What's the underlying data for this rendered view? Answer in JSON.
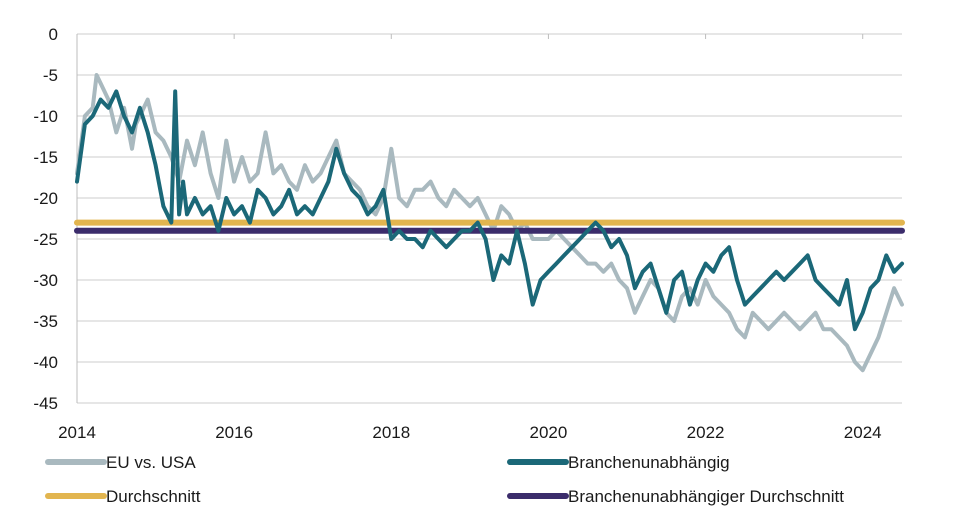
{
  "chart_data": {
    "type": "line",
    "title": "",
    "xlabel": "",
    "ylabel": "",
    "xlim": [
      2014,
      2024.5
    ],
    "ylim": [
      -45,
      0
    ],
    "x_ticks": [
      2014,
      2016,
      2018,
      2020,
      2022,
      2024
    ],
    "x_tick_labels": [
      "2014",
      "2016",
      "2018",
      "2020",
      "2022",
      "2024"
    ],
    "y_ticks": [
      0,
      -5,
      -10,
      -15,
      -20,
      -25,
      -30,
      -35,
      -40,
      -45
    ],
    "y_tick_labels": [
      "0",
      "-5",
      "-10",
      "-15",
      "-20",
      "-25",
      "-30",
      "-35",
      "-40",
      "-45"
    ],
    "grid": "horizontal",
    "legend_position": "bottom",
    "series": [
      {
        "name": "EU vs. USA",
        "color": "#a9b9bf",
        "x": [
          2014.0,
          2014.1,
          2014.2,
          2014.25,
          2014.3,
          2014.4,
          2014.5,
          2014.6,
          2014.7,
          2014.75,
          2014.8,
          2014.9,
          2015.0,
          2015.1,
          2015.2,
          2015.3,
          2015.4,
          2015.5,
          2015.6,
          2015.7,
          2015.8,
          2015.9,
          2016.0,
          2016.1,
          2016.2,
          2016.3,
          2016.4,
          2016.5,
          2016.6,
          2016.7,
          2016.8,
          2016.9,
          2017.0,
          2017.1,
          2017.2,
          2017.3,
          2017.4,
          2017.5,
          2017.6,
          2017.7,
          2017.8,
          2017.9,
          2018.0,
          2018.1,
          2018.2,
          2018.3,
          2018.4,
          2018.5,
          2018.6,
          2018.7,
          2018.8,
          2018.9,
          2019.0,
          2019.1,
          2019.2,
          2019.3,
          2019.4,
          2019.5,
          2019.6,
          2019.7,
          2019.8,
          2019.9,
          2020.0,
          2020.1,
          2020.2,
          2020.3,
          2020.4,
          2020.5,
          2020.6,
          2020.7,
          2020.8,
          2020.9,
          2021.0,
          2021.1,
          2021.2,
          2021.3,
          2021.4,
          2021.5,
          2021.6,
          2021.7,
          2021.8,
          2021.9,
          2022.0,
          2022.1,
          2022.2,
          2022.3,
          2022.4,
          2022.5,
          2022.6,
          2022.7,
          2022.8,
          2022.9,
          2023.0,
          2023.1,
          2023.2,
          2023.3,
          2023.4,
          2023.5,
          2023.6,
          2023.7,
          2023.8,
          2023.9,
          2024.0,
          2024.1,
          2024.2,
          2024.3,
          2024.4,
          2024.5
        ],
        "values": [
          -17,
          -10,
          -9,
          -5,
          -6,
          -8,
          -12,
          -9,
          -14,
          -11,
          -10,
          -8,
          -12,
          -13,
          -15,
          -18,
          -13,
          -16,
          -12,
          -17,
          -20,
          -13,
          -18,
          -15,
          -18,
          -17,
          -12,
          -17,
          -16,
          -18,
          -19,
          -16,
          -18,
          -17,
          -15,
          -13,
          -17,
          -18,
          -19,
          -21,
          -22,
          -20,
          -14,
          -20,
          -21,
          -19,
          -19,
          -18,
          -20,
          -21,
          -19,
          -20,
          -21,
          -20,
          -22,
          -24,
          -21,
          -22,
          -24,
          -23,
          -25,
          -25,
          -25,
          -24,
          -25,
          -26,
          -27,
          -28,
          -28,
          -29,
          -28,
          -30,
          -31,
          -34,
          -32,
          -30,
          -31,
          -34,
          -35,
          -32,
          -31,
          -33,
          -30,
          -32,
          -33,
          -34,
          -36,
          -37,
          -34,
          -35,
          -36,
          -35,
          -34,
          -35,
          -36,
          -35,
          -34,
          -36,
          -36,
          -37,
          -38,
          -40,
          -41,
          -39,
          -37,
          -34,
          -31,
          -33
        ]
      },
      {
        "name": "Branchenunabhängig",
        "color": "#1b6878",
        "x": [
          2014.0,
          2014.1,
          2014.2,
          2014.3,
          2014.4,
          2014.5,
          2014.6,
          2014.7,
          2014.8,
          2014.9,
          2015.0,
          2015.1,
          2015.2,
          2015.25,
          2015.3,
          2015.35,
          2015.4,
          2015.5,
          2015.6,
          2015.7,
          2015.8,
          2015.9,
          2016.0,
          2016.1,
          2016.2,
          2016.3,
          2016.4,
          2016.5,
          2016.6,
          2016.7,
          2016.8,
          2016.9,
          2017.0,
          2017.1,
          2017.2,
          2017.3,
          2017.4,
          2017.5,
          2017.6,
          2017.7,
          2017.8,
          2017.9,
          2018.0,
          2018.1,
          2018.2,
          2018.3,
          2018.4,
          2018.5,
          2018.6,
          2018.7,
          2018.8,
          2018.9,
          2019.0,
          2019.1,
          2019.2,
          2019.3,
          2019.4,
          2019.5,
          2019.6,
          2019.7,
          2019.8,
          2019.9,
          2020.0,
          2020.1,
          2020.2,
          2020.3,
          2020.4,
          2020.5,
          2020.6,
          2020.7,
          2020.8,
          2020.9,
          2021.0,
          2021.1,
          2021.2,
          2021.3,
          2021.4,
          2021.5,
          2021.6,
          2021.7,
          2021.8,
          2021.9,
          2022.0,
          2022.1,
          2022.2,
          2022.3,
          2022.4,
          2022.5,
          2022.6,
          2022.7,
          2022.8,
          2022.9,
          2023.0,
          2023.1,
          2023.2,
          2023.3,
          2023.4,
          2023.5,
          2023.6,
          2023.7,
          2023.8,
          2023.9,
          2024.0,
          2024.1,
          2024.2,
          2024.3,
          2024.4,
          2024.5
        ],
        "values": [
          -18,
          -11,
          -10,
          -8,
          -9,
          -7,
          -10,
          -12,
          -9,
          -12,
          -16,
          -21,
          -23,
          -7,
          -22,
          -18,
          -22,
          -20,
          -22,
          -21,
          -24,
          -20,
          -22,
          -21,
          -23,
          -19,
          -20,
          -22,
          -21,
          -19,
          -22,
          -21,
          -22,
          -20,
          -18,
          -14,
          -17,
          -19,
          -20,
          -22,
          -21,
          -19,
          -25,
          -24,
          -25,
          -25,
          -26,
          -24,
          -25,
          -26,
          -25,
          -24,
          -24,
          -23,
          -25,
          -30,
          -27,
          -28,
          -24,
          -28,
          -33,
          -30,
          -29,
          -28,
          -27,
          -26,
          -25,
          -24,
          -23,
          -24,
          -26,
          -25,
          -27,
          -31,
          -29,
          -28,
          -31,
          -34,
          -30,
          -29,
          -33,
          -30,
          -28,
          -29,
          -27,
          -26,
          -30,
          -33,
          -32,
          -31,
          -30,
          -29,
          -30,
          -29,
          -28,
          -27,
          -30,
          -31,
          -32,
          -33,
          -30,
          -36,
          -34,
          -31,
          -30,
          -27,
          -29,
          -28
        ]
      },
      {
        "name": "Durchschnitt",
        "color": "#e2b54f",
        "x": [
          2014.0,
          2024.5
        ],
        "values": [
          -23,
          -23
        ]
      },
      {
        "name": "Branchenunabhängiger Durchschnitt",
        "color": "#3b2c6b",
        "x": [
          2014.0,
          2024.5
        ],
        "values": [
          -24,
          -24
        ]
      }
    ]
  }
}
